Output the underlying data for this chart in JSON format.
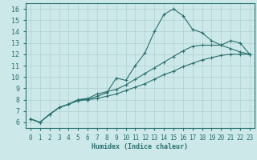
{
  "xlabel": "Humidex (Indice chaleur)",
  "background_color": "#cce8e8",
  "grid_color": "#b0d0d0",
  "line_color": "#2a7070",
  "xlim": [
    -0.5,
    23.5
  ],
  "ylim": [
    5.5,
    16.5
  ],
  "xticks": [
    0,
    1,
    2,
    3,
    4,
    5,
    6,
    7,
    8,
    9,
    10,
    11,
    12,
    13,
    14,
    15,
    16,
    17,
    18,
    19,
    20,
    21,
    22,
    23
  ],
  "yticks": [
    6,
    7,
    8,
    9,
    10,
    11,
    12,
    13,
    14,
    15,
    16
  ],
  "curve1_x": [
    0,
    1,
    2,
    3,
    4,
    5,
    6,
    7,
    8,
    9,
    10,
    11,
    12,
    13,
    14,
    15,
    16,
    17,
    18,
    19,
    20,
    21,
    22,
    23
  ],
  "curve1_y": [
    6.3,
    6.0,
    6.7,
    7.3,
    7.6,
    8.0,
    8.0,
    8.3,
    8.6,
    9.9,
    9.7,
    11.0,
    12.1,
    14.0,
    15.5,
    16.0,
    15.4,
    14.2,
    13.9,
    13.2,
    12.8,
    13.2,
    13.0,
    12.0
  ],
  "curve2_x": [
    0,
    1,
    2,
    3,
    4,
    5,
    6,
    7,
    8,
    9,
    10,
    11,
    12,
    13,
    14,
    15,
    16,
    17,
    18,
    19,
    20,
    21,
    22,
    23
  ],
  "curve2_y": [
    6.3,
    6.0,
    6.7,
    7.3,
    7.6,
    8.0,
    8.1,
    8.5,
    8.7,
    8.9,
    9.3,
    9.8,
    10.3,
    10.8,
    11.3,
    11.8,
    12.3,
    12.7,
    12.8,
    12.8,
    12.8,
    12.5,
    12.2,
    12.0
  ],
  "curve3_x": [
    0,
    1,
    2,
    3,
    4,
    5,
    6,
    7,
    8,
    9,
    10,
    11,
    12,
    13,
    14,
    15,
    16,
    17,
    18,
    19,
    20,
    21,
    22,
    23
  ],
  "curve3_y": [
    6.3,
    6.0,
    6.7,
    7.3,
    7.6,
    7.9,
    8.0,
    8.1,
    8.3,
    8.5,
    8.8,
    9.1,
    9.4,
    9.8,
    10.2,
    10.5,
    10.9,
    11.2,
    11.5,
    11.7,
    11.9,
    12.0,
    12.0,
    12.0
  ]
}
